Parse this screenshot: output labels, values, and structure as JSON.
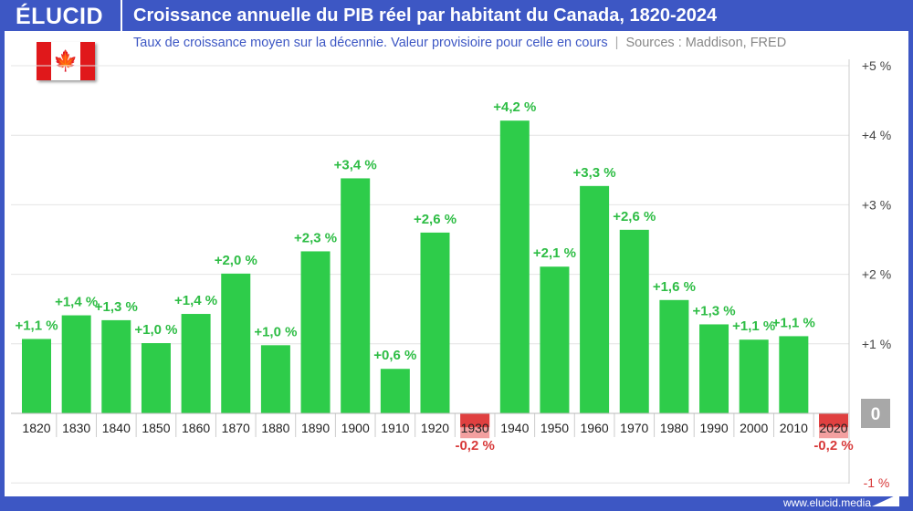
{
  "header": {
    "logo": "ÉLUCID",
    "title": "Croissance annuelle du PIB réel par habitant du Canada, 1820-2024"
  },
  "subtitle": "Taux de croissance moyen sur la décennie. Valeur provisioire pour celle en cours",
  "sources": "Sources : Maddison, FRED",
  "footer": {
    "url": "www.elucid.media"
  },
  "colors": {
    "frame": "#3d57c4",
    "positive": "#2ecc4a",
    "negative": "#e04040",
    "positive_label": "#2ebd45",
    "negative_label": "#d83a3a"
  },
  "flag_icon": "canada-flag-icon",
  "chart_data": {
    "type": "bar",
    "categories": [
      "1820",
      "1830",
      "1840",
      "1850",
      "1860",
      "1870",
      "1880",
      "1890",
      "1900",
      "1910",
      "1920",
      "1930",
      "1940",
      "1950",
      "1960",
      "1970",
      "1980",
      "1990",
      "2000",
      "2010",
      "2020"
    ],
    "values": [
      1.07,
      1.41,
      1.34,
      1.01,
      1.43,
      2.01,
      0.98,
      2.33,
      3.38,
      0.64,
      2.6,
      -0.2,
      4.21,
      2.11,
      3.27,
      2.64,
      1.63,
      1.28,
      1.06,
      1.11,
      -0.2
    ],
    "data_labels": [
      "+1,1 %",
      "+1,4 %",
      "+1,3 %",
      "+1,0 %",
      "+1,4 %",
      "+2,0 %",
      "+1,0 %",
      "+2,3 %",
      "+3,4 %",
      "+0,6 %",
      "+2,6 %",
      "-0,2 %",
      "+4,2 %",
      "+2,1 %",
      "+3,3 %",
      "+2,6 %",
      "+1,6 %",
      "+1,3 %",
      "+1,1 %",
      "+1,1 %",
      "-0,2 %"
    ],
    "ylim": [
      -1,
      5
    ],
    "yticks": [
      {
        "v": 5,
        "label": "+5 %"
      },
      {
        "v": 4,
        "label": "+4 %"
      },
      {
        "v": 3,
        "label": "+3 %"
      },
      {
        "v": 2,
        "label": "+2 %"
      },
      {
        "v": 1,
        "label": "+1 %"
      },
      {
        "v": 0,
        "label": "0"
      },
      {
        "v": -1,
        "label": "-1 %"
      }
    ],
    "grid": true,
    "yaxis_position": "right"
  }
}
